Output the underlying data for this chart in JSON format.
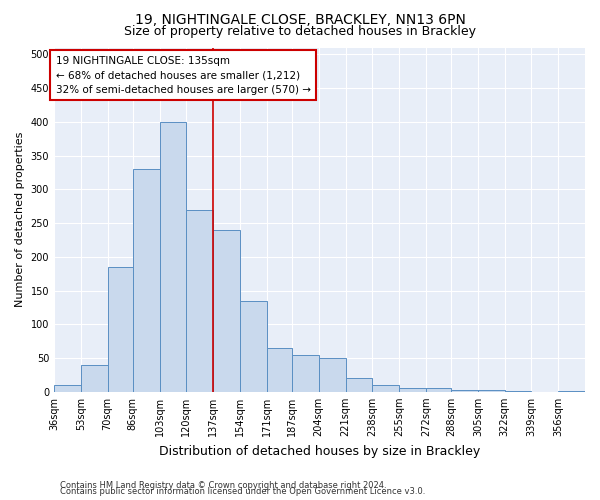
{
  "title_line1": "19, NIGHTINGALE CLOSE, BRACKLEY, NN13 6PN",
  "title_line2": "Size of property relative to detached houses in Brackley",
  "xlabel": "Distribution of detached houses by size in Brackley",
  "ylabel": "Number of detached properties",
  "footer_line1": "Contains HM Land Registry data © Crown copyright and database right 2024.",
  "footer_line2": "Contains public sector information licensed under the Open Government Licence v3.0.",
  "annotation_line1": "19 NIGHTINGALE CLOSE: 135sqm",
  "annotation_line2": "← 68% of detached houses are smaller (1,212)",
  "annotation_line3": "32% of semi-detached houses are larger (570) →",
  "property_size": 135,
  "bin_edges": [
    36,
    53,
    70,
    86,
    103,
    120,
    137,
    154,
    171,
    187,
    204,
    221,
    238,
    255,
    272,
    288,
    305,
    322,
    339,
    356,
    373
  ],
  "bar_heights": [
    10,
    40,
    185,
    330,
    400,
    270,
    240,
    135,
    65,
    55,
    50,
    20,
    10,
    5,
    5,
    3,
    2,
    1,
    0,
    1
  ],
  "bar_facecolor": "#c9d9ed",
  "bar_edgecolor": "#5a8fc3",
  "vline_color": "#cc0000",
  "vline_x": 137,
  "ylim": [
    0,
    510
  ],
  "yticks": [
    0,
    50,
    100,
    150,
    200,
    250,
    300,
    350,
    400,
    450,
    500
  ],
  "bg_color": "#e8eef8",
  "annotation_box_color": "#cc0000",
  "title_fontsize": 10,
  "subtitle_fontsize": 9,
  "ylabel_fontsize": 8,
  "xlabel_fontsize": 9,
  "tick_fontsize": 7,
  "footer_fontsize": 6,
  "annot_fontsize": 7.5
}
